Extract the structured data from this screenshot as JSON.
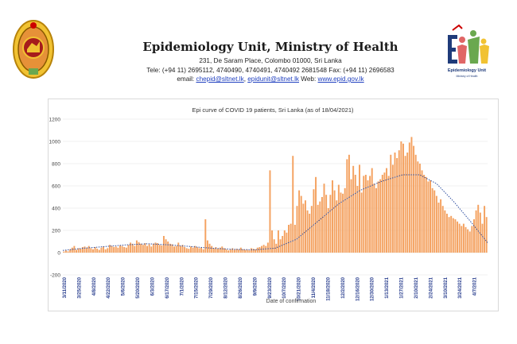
{
  "header": {
    "title": "Epidemiology Unit,     Ministry of Health",
    "address": "231, De Saram Place, Colombo 01000, Sri Lanka",
    "contact": "Tele: (+94 11) 2695112, 4740490, 4740491, 4740492 2681548  Fax: (+94 11) 2696583",
    "email_prefix": "email:",
    "email1": "chepid@sltnet.lk",
    "email2": "epidunit@sltnet.lk",
    "web_prefix": "Web:",
    "web": "www.epid.gov.lk",
    "logo_caption": "Epidemiology Unit",
    "logo_subcaption": "Ministry of Health"
  },
  "colors": {
    "bars": "#f4a261",
    "trend": "#2f4fa0",
    "axis_labels": "#2a3f8f",
    "grid": "#e3e3e3"
  },
  "chart_data": {
    "type": "bar",
    "title": "Epi curve of COVID 19 patients, Sri Lanka  (as of 18/04/2021)",
    "xlabel": "Date of confirmation",
    "ylabel": "",
    "ylim": [
      -200,
      1200
    ],
    "yticks": [
      -200,
      0,
      200,
      400,
      600,
      800,
      1000,
      1200
    ],
    "grid": true,
    "legend": "none",
    "x_tick_labels": [
      "3/11/2020",
      "3/25/2020",
      "4/8/2020",
      "4/22/2020",
      "5/6/2020",
      "5/20/2020",
      "6/3/2020",
      "6/17/2020",
      "7/1/2020",
      "7/15/2020",
      "7/29/2020",
      "8/12/2020",
      "8/26/2020",
      "9/9/2020",
      "9/23/2020",
      "10/7/2020",
      "10/21/2020",
      "11/4/2020",
      "11/18/2020",
      "12/2/2020",
      "12/16/2020",
      "12/30/2020",
      "1/13/2021",
      "1/27/2021",
      "2/10/2021",
      "2/24/2021",
      "3/10/2021",
      "3/24/2021",
      "4/7/2021"
    ],
    "series": [
      {
        "values": [
          10,
          20,
          12,
          30,
          45,
          60,
          25,
          40,
          35,
          50,
          55,
          45,
          60,
          40,
          30,
          50,
          35,
          25,
          45,
          55,
          30,
          40,
          70,
          60,
          50,
          55,
          45,
          65,
          60,
          50,
          45,
          70,
          90,
          80,
          60,
          110,
          95,
          80,
          70,
          85,
          60,
          75,
          55,
          80,
          90,
          85,
          70,
          65,
          150,
          120,
          100,
          80,
          75,
          55,
          60,
          90,
          60,
          70,
          50,
          40,
          35,
          55,
          45,
          60,
          50,
          40,
          45,
          30,
          300,
          110,
          80,
          60,
          40,
          50,
          35,
          45,
          55,
          40,
          30,
          20,
          30,
          40,
          25,
          35,
          30,
          45,
          30,
          25,
          30,
          20,
          40,
          35,
          30,
          45,
          50,
          60,
          70,
          60,
          90,
          740,
          200,
          120,
          80,
          200,
          120,
          150,
          200,
          180,
          250,
          260,
          870,
          250,
          420,
          560,
          510,
          440,
          470,
          380,
          350,
          420,
          570,
          680,
          430,
          460,
          500,
          620,
          520,
          400,
          520,
          650,
          560,
          470,
          610,
          540,
          530,
          580,
          840,
          880,
          660,
          780,
          700,
          600,
          790,
          540,
          690,
          700,
          650,
          690,
          760,
          620,
          580,
          640,
          660,
          700,
          720,
          760,
          690,
          880,
          790,
          900,
          850,
          920,
          1000,
          980,
          870,
          900,
          990,
          1040,
          960,
          880,
          820,
          800,
          740,
          700,
          680,
          640,
          650,
          580,
          560,
          510,
          450,
          480,
          420,
          380,
          350,
          320,
          330,
          310,
          300,
          280,
          260,
          240,
          260,
          230,
          210,
          190,
          240,
          300,
          380,
          430,
          360,
          260,
          420,
          320
        ]
      }
    ],
    "trend": [
      {
        "t": 0,
        "v": 20
      },
      {
        "t": 0.05,
        "v": 40
      },
      {
        "t": 0.1,
        "v": 55
      },
      {
        "t": 0.15,
        "v": 70
      },
      {
        "t": 0.2,
        "v": 80
      },
      {
        "t": 0.25,
        "v": 70
      },
      {
        "t": 0.3,
        "v": 55
      },
      {
        "t": 0.35,
        "v": 40
      },
      {
        "t": 0.4,
        "v": 30
      },
      {
        "t": 0.45,
        "v": 25
      },
      {
        "t": 0.5,
        "v": 40
      },
      {
        "t": 0.55,
        "v": 120
      },
      {
        "t": 0.6,
        "v": 280
      },
      {
        "t": 0.65,
        "v": 440
      },
      {
        "t": 0.7,
        "v": 560
      },
      {
        "t": 0.75,
        "v": 640
      },
      {
        "t": 0.8,
        "v": 700
      },
      {
        "t": 0.84,
        "v": 700
      },
      {
        "t": 0.88,
        "v": 620
      },
      {
        "t": 0.92,
        "v": 460
      },
      {
        "t": 0.96,
        "v": 280
      },
      {
        "t": 1,
        "v": 90
      }
    ]
  }
}
